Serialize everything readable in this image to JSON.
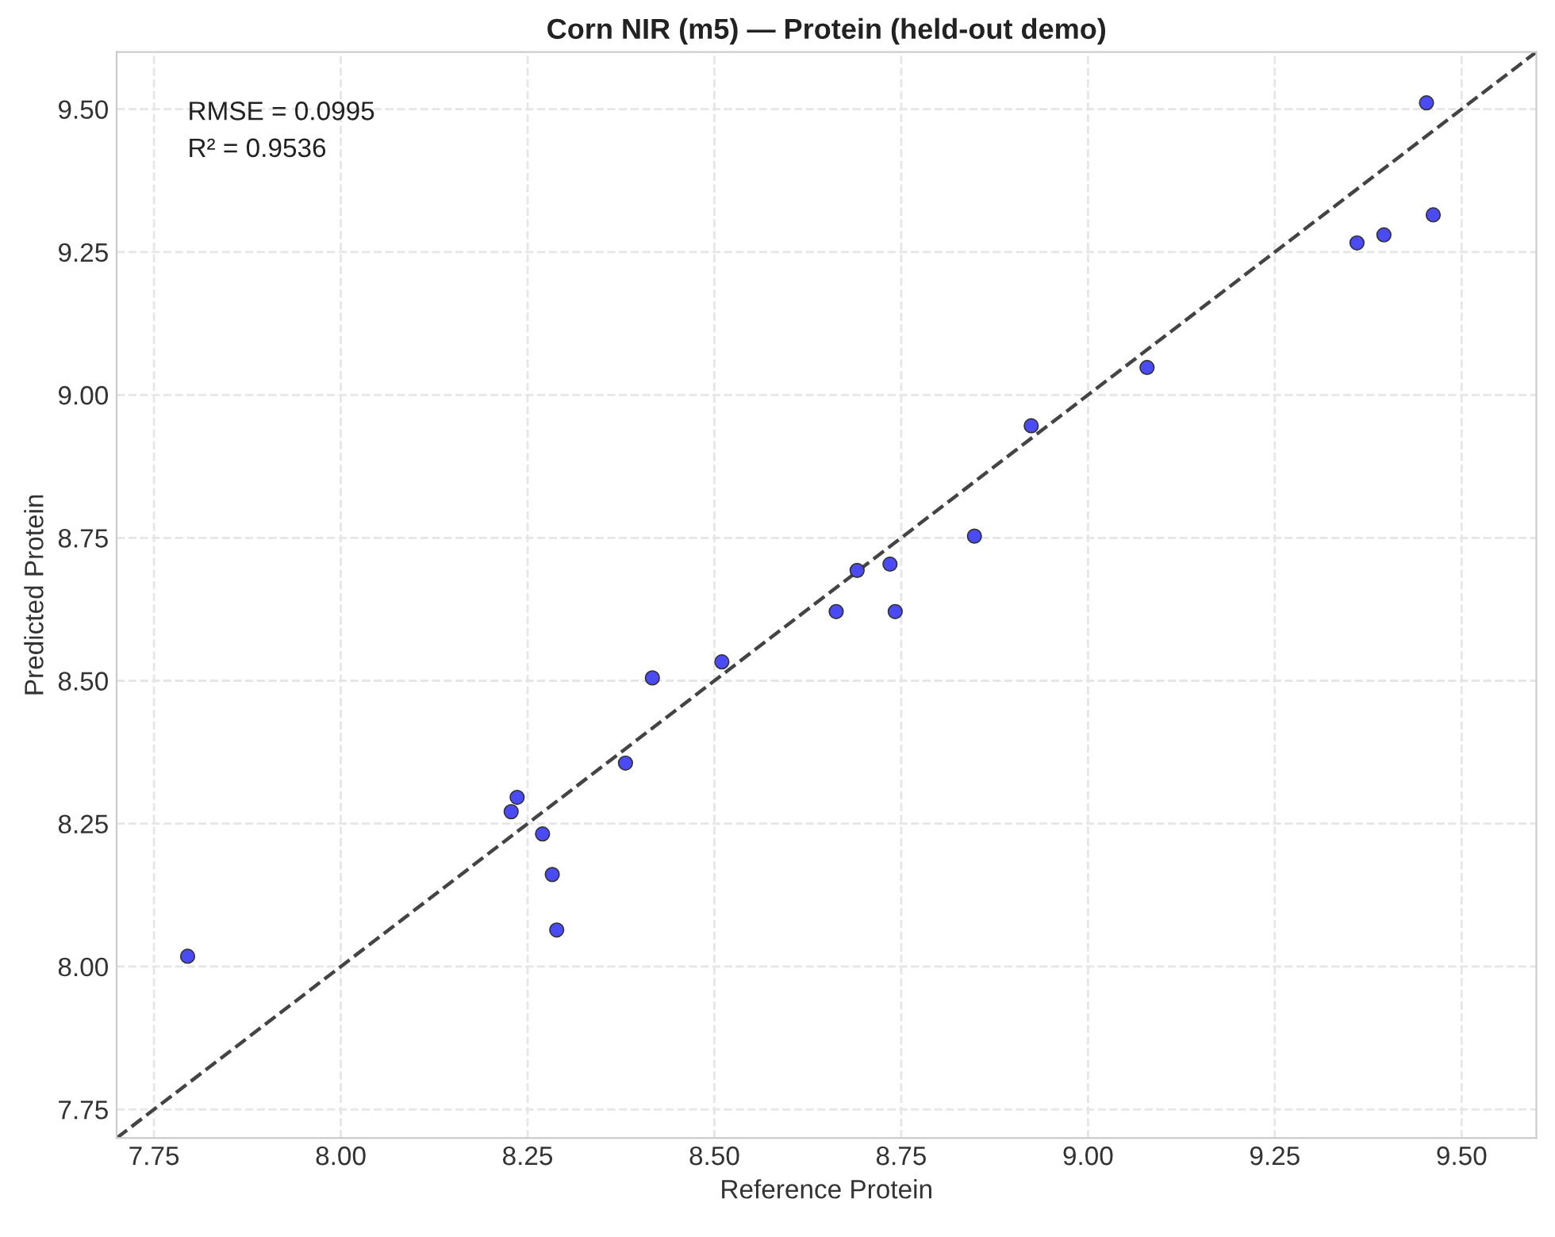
{
  "chart_data": {
    "type": "scatter",
    "title": "Corn NIR (m5) — Protein (held-out demo)",
    "xlabel": "Reference Protein",
    "ylabel": "Predicted Protein",
    "series": [
      {
        "marker": "circle",
        "color": "#4b4bf5",
        "x": [
          7.795,
          8.236,
          8.228,
          8.27,
          8.283,
          8.289,
          8.381,
          8.417,
          8.51,
          8.663,
          8.691,
          8.735,
          8.742,
          8.848,
          8.924,
          9.079,
          9.36,
          9.396,
          9.453,
          9.462
        ],
        "values": [
          8.018,
          8.296,
          8.271,
          8.232,
          8.161,
          8.064,
          8.356,
          8.505,
          8.533,
          8.621,
          8.693,
          8.704,
          8.621,
          8.753,
          8.946,
          9.048,
          9.266,
          9.28,
          9.511,
          9.315
        ]
      },
      {
        "type": "line",
        "color": "#444444",
        "line_style": "dashed",
        "x": [
          7.7,
          9.6
        ],
        "values": [
          7.7,
          9.6
        ]
      }
    ],
    "annotations": [
      "RMSE = 0.0995",
      "R² = 0.9536"
    ],
    "xlim": [
      7.7,
      9.6
    ],
    "ylim": [
      7.7,
      9.6
    ],
    "xticks": [
      7.75,
      {
        "value": 8.0,
        "label": "8.00"
      },
      8.25,
      {
        "value": 8.5,
        "label": "8.50"
      },
      8.75,
      {
        "value": 9.0,
        "label": "9.00"
      },
      9.25,
      {
        "value": 9.5,
        "label": "9.50"
      }
    ],
    "yticks": [
      7.75,
      {
        "value": 8.0,
        "label": "8.00"
      },
      8.25,
      {
        "value": 8.5,
        "label": "8.50"
      },
      8.75,
      {
        "value": 9.0,
        "label": "9.00"
      },
      9.25,
      {
        "value": 9.5,
        "label": "9.50"
      }
    ],
    "grid": true
  }
}
